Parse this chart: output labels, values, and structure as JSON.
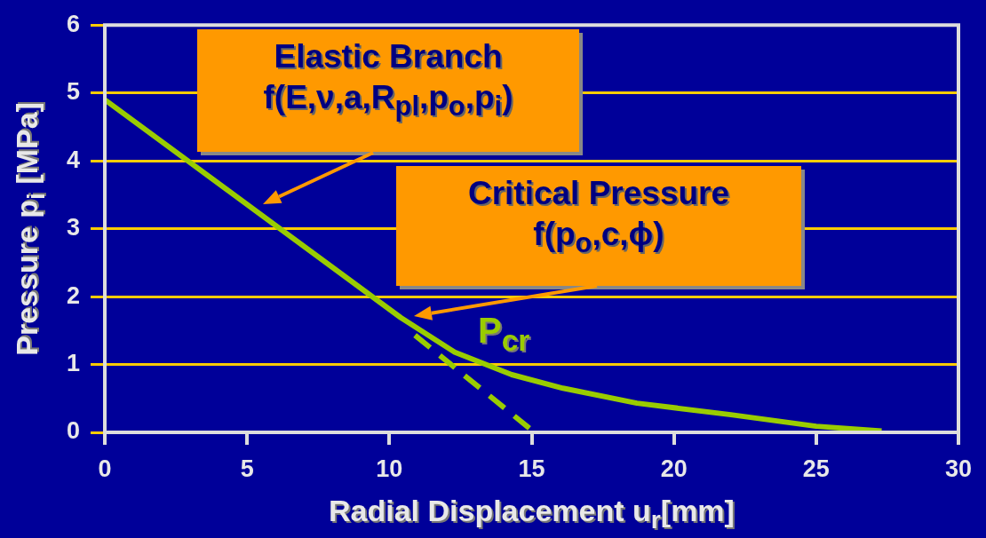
{
  "chart_data": {
    "type": "line",
    "xlabel": "Radial Displacement u$_{r}$[mm]",
    "ylabel": "Pressure  p$_{i}$ [MPa]",
    "xlim": [
      0,
      30
    ],
    "xticks": [
      0,
      5,
      10,
      15,
      20,
      25,
      30
    ],
    "ylim": [
      0,
      6
    ],
    "yticks": [
      0,
      1,
      2,
      3,
      4,
      5,
      6
    ],
    "grid": "y",
    "legend": false,
    "marker": "none",
    "series": [
      {
        "color": "#99cc00",
        "line_style": "solid",
        "x": [
          0,
          10.4,
          12.3,
          14.3,
          16.1,
          18.7,
          22.0,
          25.0,
          27.3
        ],
        "values": [
          4.9,
          1.69,
          1.18,
          0.85,
          0.65,
          0.43,
          0.26,
          0.09,
          0.02
        ]
      },
      {
        "color": "#99cc00",
        "line_style": "dashed",
        "x": [
          10.9,
          15.1
        ],
        "values": [
          1.43,
          0
        ]
      }
    ],
    "annotations": [
      "Elastic Branch\nf(E,ν,a,R$_{pl}$,p$_{o}$,p$_{i}$)",
      "Critical Pressure\nf(p$_{o}$,c,ϕ)",
      "P$_{cr}$"
    ]
  }
}
